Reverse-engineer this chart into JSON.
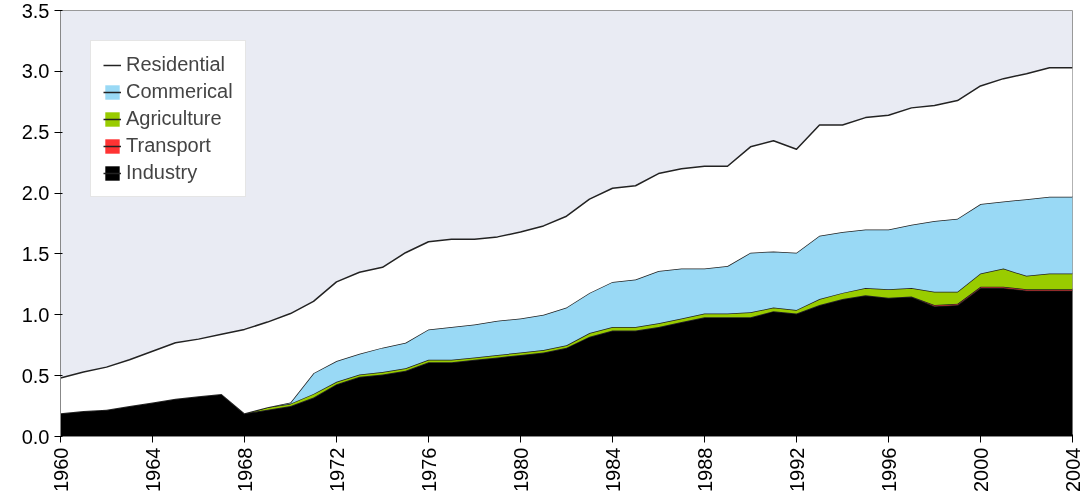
{
  "chart_data": {
    "type": "area",
    "stacked": true,
    "x": [
      1960,
      1961,
      1962,
      1963,
      1964,
      1965,
      1966,
      1967,
      1968,
      1969,
      1970,
      1971,
      1972,
      1973,
      1974,
      1975,
      1976,
      1977,
      1978,
      1979,
      1980,
      1981,
      1982,
      1983,
      1984,
      1985,
      1986,
      1987,
      1988,
      1989,
      1990,
      1991,
      1992,
      1993,
      1994,
      1995,
      1996,
      1997,
      1998,
      1999,
      2000,
      2001,
      2002,
      2003,
      2004
    ],
    "series": [
      {
        "name": "Industry",
        "color": "#000000",
        "values": [
          0.19,
          0.21,
          0.22,
          0.25,
          0.28,
          0.31,
          0.33,
          0.35,
          0.19,
          0.22,
          0.25,
          0.32,
          0.43,
          0.49,
          0.51,
          0.54,
          0.61,
          0.61,
          0.63,
          0.65,
          0.67,
          0.69,
          0.73,
          0.82,
          0.87,
          0.87,
          0.9,
          0.94,
          0.98,
          0.98,
          0.98,
          1.03,
          1.01,
          1.08,
          1.13,
          1.16,
          1.14,
          1.15,
          1.07,
          1.08,
          1.22,
          1.22,
          1.2,
          1.2,
          1.2
        ]
      },
      {
        "name": "Transport",
        "color": "#ff3333",
        "values": [
          0,
          0,
          0,
          0,
          0,
          0,
          0,
          0,
          0,
          0,
          0,
          0,
          0,
          0,
          0,
          0,
          0,
          0,
          0,
          0,
          0,
          0,
          0,
          0,
          0,
          0,
          0,
          0,
          0,
          0,
          0,
          0,
          0,
          0,
          0,
          0,
          0,
          0,
          0.01,
          0.01,
          0.01,
          0.01,
          0.01,
          0.01,
          0.01
        ]
      },
      {
        "name": "Agriculture",
        "color": "#99cc00",
        "values": [
          0,
          0,
          0,
          0,
          0,
          0,
          0,
          0,
          0,
          0.02,
          0.02,
          0.03,
          0.02,
          0.02,
          0.02,
          0.02,
          0.02,
          0.02,
          0.02,
          0.02,
          0.02,
          0.02,
          0.02,
          0.03,
          0.03,
          0.03,
          0.03,
          0.03,
          0.03,
          0.03,
          0.04,
          0.03,
          0.03,
          0.05,
          0.05,
          0.06,
          0.07,
          0.07,
          0.11,
          0.1,
          0.11,
          0.15,
          0.11,
          0.13,
          0.13
        ]
      },
      {
        "name": "Commerical",
        "color": "#99d9f5",
        "values": [
          0,
          0,
          0,
          0,
          0,
          0,
          0,
          0,
          0,
          0,
          0.01,
          0.17,
          0.17,
          0.17,
          0.2,
          0.21,
          0.25,
          0.27,
          0.27,
          0.28,
          0.28,
          0.29,
          0.31,
          0.33,
          0.37,
          0.39,
          0.43,
          0.41,
          0.37,
          0.39,
          0.49,
          0.46,
          0.47,
          0.52,
          0.5,
          0.48,
          0.49,
          0.52,
          0.58,
          0.6,
          0.57,
          0.55,
          0.63,
          0.63,
          0.63
        ]
      },
      {
        "name": "Residential",
        "color": "#ffffff",
        "values": [
          0.29,
          0.32,
          0.35,
          0.38,
          0.42,
          0.46,
          0.47,
          0.49,
          0.69,
          0.7,
          0.73,
          0.59,
          0.65,
          0.67,
          0.66,
          0.74,
          0.72,
          0.72,
          0.7,
          0.69,
          0.71,
          0.73,
          0.75,
          0.77,
          0.77,
          0.77,
          0.8,
          0.82,
          0.84,
          0.82,
          0.87,
          0.91,
          0.85,
          0.91,
          0.88,
          0.92,
          0.94,
          0.96,
          0.95,
          0.97,
          0.97,
          1.01,
          1.03,
          1.06,
          1.06
        ]
      }
    ],
    "xlim": [
      1960,
      2004
    ],
    "xticks": [
      1960,
      1964,
      1968,
      1972,
      1976,
      1980,
      1984,
      1988,
      1992,
      1996,
      2000,
      2004
    ],
    "ylim": [
      0,
      3.5
    ],
    "yticks": [
      {
        "value": 0,
        "label": "0.0"
      },
      {
        "value": 0.5,
        "label": "0.5"
      },
      {
        "value": 1,
        "label": "1.0"
      },
      {
        "value": 1.5,
        "label": "1.5"
      },
      {
        "value": 2,
        "label": "2.0"
      },
      {
        "value": 2.5,
        "label": "2.5"
      },
      {
        "value": 3,
        "label": "3.0"
      },
      {
        "value": 3.5,
        "label": "3.5"
      }
    ],
    "grid": false,
    "legend": "top left"
  }
}
